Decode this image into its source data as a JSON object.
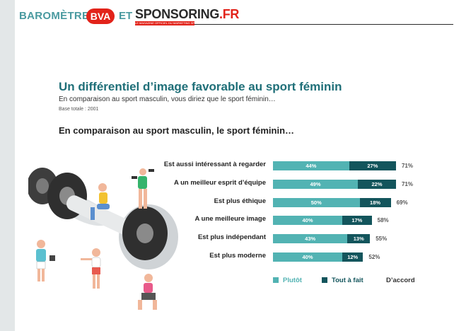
{
  "header": {
    "barometre": "BAROMÈTRE PAR",
    "bva": "BVA",
    "et": "ET",
    "sponsoring": "SPONSORING",
    "sponsoring_fr": ".FR",
    "sponsoring_tagline": "LE MAGAZINE OFFICIEL DU MARKETING SPORTIF"
  },
  "title": "Un différentiel d’image favorable au sport féminin",
  "subtitle": "En comparaison au sport masculin, vous diriez que le sport féminin…",
  "base": "Base totale : 2001",
  "question": "En comparaison au sport masculin, le sport féminin…",
  "colors": {
    "plutot": "#52b3b3",
    "tout_a_fait": "#13555c",
    "accent": "#1f6f78"
  },
  "chart_data": {
    "type": "bar",
    "stacked": true,
    "orientation": "horizontal",
    "categories": [
      "Est aussi intéressant à regarder",
      "A un meilleur esprit d’équipe",
      "Est plus éthique",
      "A une meilleure image",
      "Est plus indépendant",
      "Est plus moderne"
    ],
    "series": [
      {
        "name": "Plutôt",
        "values": [
          44,
          49,
          50,
          40,
          43,
          40
        ],
        "labels": [
          "44%",
          "49%",
          "50%",
          "40%",
          "43%",
          "40%"
        ],
        "color": "#52b3b3"
      },
      {
        "name": "Tout à fait",
        "values": [
          27,
          22,
          18,
          17,
          13,
          12
        ],
        "labels": [
          "27%",
          "22%",
          "18%",
          "17%",
          "13%",
          "12%"
        ],
        "color": "#13555c"
      }
    ],
    "totals": [
      "71%",
      "71%",
      "69%",
      "58%",
      "55%",
      "52%"
    ],
    "legend_title": "D’accord",
    "legend_position": "bottom"
  }
}
